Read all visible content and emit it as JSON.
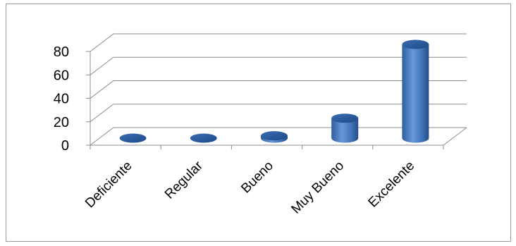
{
  "chart_data": {
    "type": "bar",
    "style": "3d-cylinder",
    "categories": [
      "Deficiente",
      "Regular",
      "Bueno",
      "Muy Bueno",
      "Excelente"
    ],
    "values": [
      0,
      0,
      2,
      17,
      80
    ],
    "ylim": [
      0,
      80
    ],
    "yticks": [
      "0",
      "20",
      "40",
      "60",
      "80"
    ],
    "grid": true,
    "legend": "none",
    "bar_color": "#3f73b8"
  }
}
